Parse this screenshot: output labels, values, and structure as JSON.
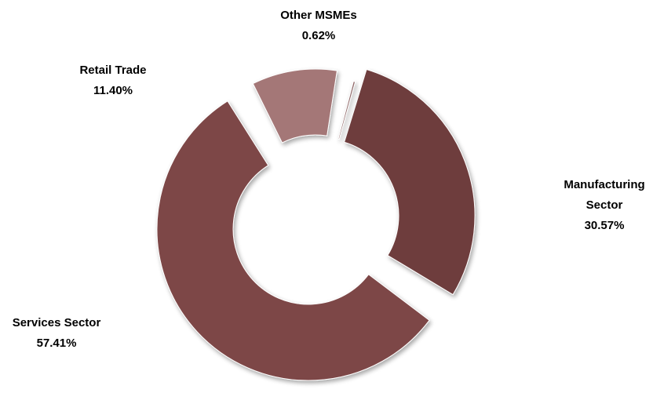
{
  "chart_data": {
    "type": "pie",
    "variant": "exploded-donut",
    "title": "",
    "legend": "none",
    "slices": [
      {
        "name": "Manufacturing Sector",
        "label_lines": [
          "Manufacturing",
          "Sector"
        ],
        "value": 30.57,
        "display": "30.57%",
        "color": "#6e3c3c"
      },
      {
        "name": "Services Sector",
        "label_lines": [
          "Services Sector"
        ],
        "value": 57.41,
        "display": "57.41%",
        "color": "#7d4646"
      },
      {
        "name": "Retail Trade",
        "label_lines": [
          "Retail Trade"
        ],
        "value": 11.4,
        "display": "11.40%",
        "color": "#a47777"
      },
      {
        "name": "Other MSMEs",
        "label_lines": [
          "Other MSMEs"
        ],
        "value": 0.62,
        "display": "0.62%",
        "color": "#8f6868"
      }
    ]
  }
}
